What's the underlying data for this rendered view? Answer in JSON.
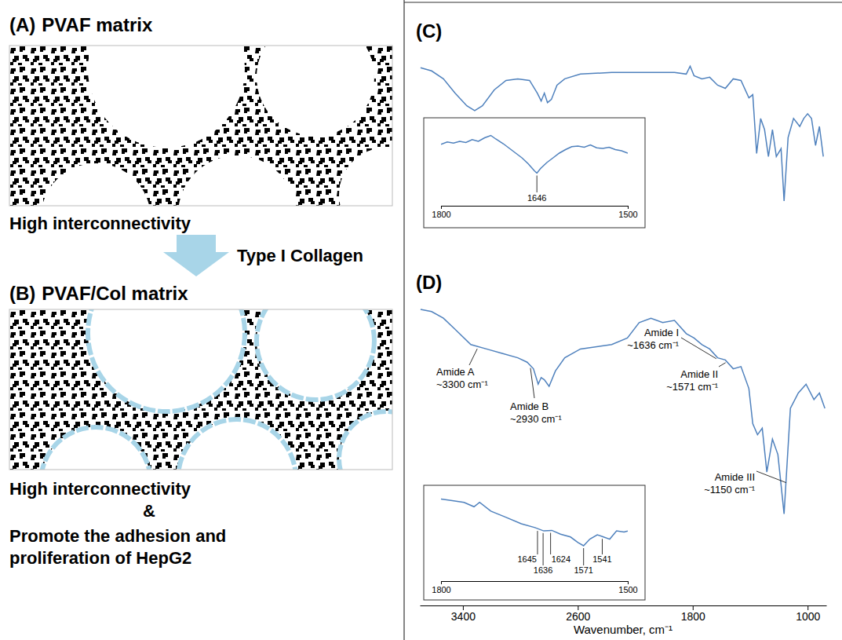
{
  "schematic": {
    "panel_a": {
      "letter": "(A)",
      "title": "PVAF matrix",
      "caption": "High interconnectivity"
    },
    "arrow_label": "Type I Collagen",
    "panel_b": {
      "letter": "(B)",
      "title": "PVAF/Col matrix",
      "caption_lines": [
        "High interconnectivity",
        "&",
        "Promote the adhesion and",
        "proliferation of HepG2"
      ]
    }
  },
  "chart_data": [
    {
      "type": "line",
      "letter": "(C)",
      "color": "#4f81bd",
      "xlim": [
        3700,
        870
      ],
      "ylim": [
        0,
        100
      ],
      "tick_labels": false,
      "x": [
        3695,
        3618,
        3536,
        3455,
        3373,
        3318,
        3264,
        3182,
        3100,
        3018,
        2936,
        2882,
        2855,
        2833,
        2811,
        2784,
        2745,
        2691,
        2582,
        2364,
        2145,
        1927,
        1845,
        1818,
        1791,
        1736,
        1682,
        1627,
        1573,
        1518,
        1464,
        1409,
        1382,
        1355,
        1327,
        1300,
        1273,
        1245,
        1218,
        1185,
        1164,
        1136,
        1098,
        1055,
        1027,
        1000,
        973,
        945,
        918,
        891
      ],
      "values": [
        87,
        85,
        80,
        71,
        63,
        60,
        63,
        73,
        79,
        80,
        79,
        71,
        66,
        71,
        65,
        67,
        76,
        80,
        83,
        84,
        84,
        84,
        83,
        88,
        82,
        80,
        81,
        76,
        74,
        80,
        79,
        68,
        70,
        33,
        55,
        48,
        31,
        48,
        31,
        36,
        3,
        43,
        55,
        50,
        55,
        58,
        55,
        38,
        50,
        31
      ]
    },
    {
      "type": "line",
      "color": "#4f81bd",
      "xlim": [
        1800,
        1500
      ],
      "ylim": [
        0,
        100
      ],
      "xticks": [
        1800,
        1500
      ],
      "tick_labels": "x",
      "x": [
        1800,
        1790,
        1780,
        1770,
        1760,
        1750,
        1740,
        1730,
        1720,
        1712,
        1700,
        1690,
        1680,
        1670,
        1660,
        1650,
        1646,
        1640,
        1630,
        1620,
        1610,
        1600,
        1590,
        1580,
        1570,
        1560,
        1550,
        1540,
        1530,
        1520,
        1510,
        1500
      ],
      "values": [
        75,
        79,
        77,
        80,
        78,
        83,
        80,
        86,
        90,
        84,
        76,
        68,
        60,
        52,
        42,
        30,
        26,
        34,
        44,
        52,
        60,
        66,
        71,
        72,
        70,
        74,
        69,
        68,
        70,
        66,
        64,
        60
      ],
      "annotations": [
        {
          "label": "1646",
          "x": 1646
        }
      ]
    },
    {
      "type": "line",
      "letter": "(D)",
      "color": "#4f81bd",
      "xlim": [
        3700,
        870
      ],
      "ylim": [
        0,
        100
      ],
      "xticks": [
        3400,
        2600,
        1800,
        1000
      ],
      "tick_labels": "x",
      "x_label": "Wavenumber, cm⁻¹",
      "x": [
        3695,
        3618,
        3536,
        3455,
        3345,
        3236,
        3127,
        3018,
        2953,
        2909,
        2876,
        2855,
        2833,
        2800,
        2756,
        2691,
        2582,
        2364,
        2255,
        2173,
        2091,
        2009,
        1927,
        1845,
        1791,
        1736,
        1682,
        1627,
        1573,
        1518,
        1464,
        1409,
        1382,
        1349,
        1316,
        1284,
        1245,
        1207,
        1164,
        1120,
        1065,
        1011,
        956,
        918,
        880
      ],
      "values": [
        95,
        94,
        91,
        86,
        79,
        77,
        75,
        73,
        71,
        68,
        61,
        64,
        63,
        60,
        67,
        73,
        77,
        79,
        82,
        89,
        91,
        89,
        90,
        84,
        82,
        79,
        77,
        73,
        72,
        68,
        69,
        59,
        43,
        38,
        41,
        21,
        36,
        29,
        2,
        50,
        57,
        61,
        54,
        57,
        50
      ],
      "annotations": [
        {
          "label": "Amide A",
          "value_label": "~3300 cm⁻¹",
          "x": 3300
        },
        {
          "label": "Amide B",
          "value_label": "~2930 cm⁻¹",
          "x": 2930
        },
        {
          "label": "Amide I",
          "value_label": "~1636 cm⁻¹",
          "x": 1636
        },
        {
          "label": "Amide II",
          "value_label": "~1571 cm⁻¹",
          "x": 1571
        },
        {
          "label": "Amide III",
          "value_label": "~1150 cm⁻¹",
          "x": 1150
        }
      ]
    },
    {
      "type": "line",
      "color": "#4f81bd",
      "xlim": [
        1800,
        1500
      ],
      "ylim": [
        0,
        100
      ],
      "xticks": [
        1800,
        1500
      ],
      "tick_labels": "x",
      "x": [
        1800,
        1782,
        1763,
        1747,
        1738,
        1720,
        1696,
        1671,
        1649,
        1635,
        1622,
        1608,
        1592,
        1580,
        1571,
        1561,
        1549,
        1539,
        1529,
        1518,
        1506,
        1500
      ],
      "values": [
        95,
        92,
        89,
        81,
        89,
        73,
        62,
        50,
        43,
        37,
        38,
        31,
        26,
        16,
        10,
        22,
        30,
        26,
        22,
        37,
        35,
        37
      ],
      "annotations": [
        {
          "label": "1645",
          "x": 1645
        },
        {
          "label": "1636",
          "x": 1636
        },
        {
          "label": "1624",
          "x": 1624
        },
        {
          "label": "1571",
          "x": 1571
        },
        {
          "label": "1541",
          "x": 1541
        }
      ]
    }
  ]
}
